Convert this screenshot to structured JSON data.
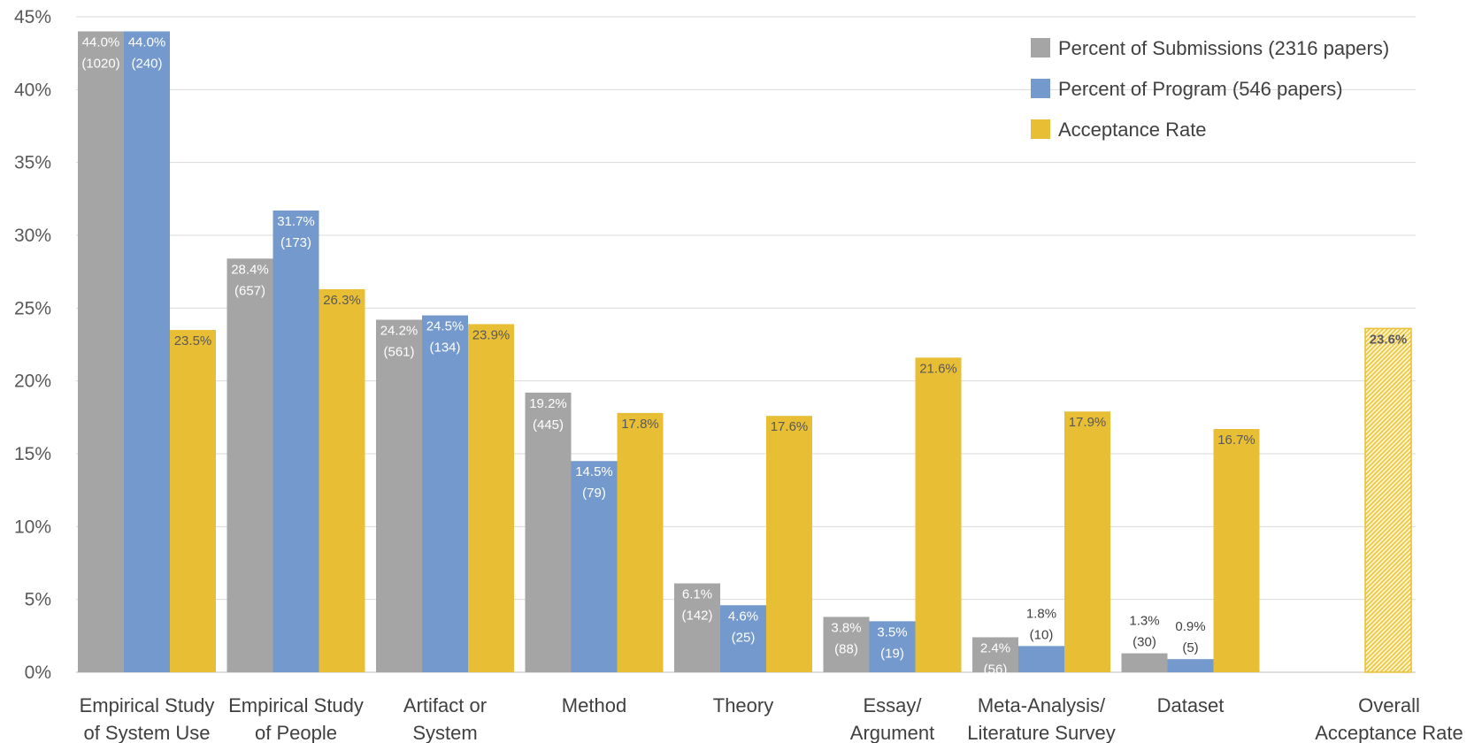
{
  "chart_data": {
    "type": "bar",
    "title": "",
    "xlabel": "",
    "ylabel": "",
    "ylim": [
      0,
      45
    ],
    "yticks": [
      "0%",
      "5%",
      "10%",
      "15%",
      "20%",
      "25%",
      "30%",
      "35%",
      "40%",
      "45%"
    ],
    "grid": true,
    "legend_position": "top-right",
    "categories": [
      [
        "Empirical Study",
        "of System Use"
      ],
      [
        "Empirical Study",
        "of People"
      ],
      [
        "Artifact or",
        "System"
      ],
      [
        "Method"
      ],
      [
        "Theory"
      ],
      [
        "Essay/",
        "Argument"
      ],
      [
        "Meta-Analysis/",
        "Literature Survey"
      ],
      [
        "Dataset"
      ],
      [
        "Overall",
        "Acceptance Rate"
      ]
    ],
    "series": [
      {
        "name": "Percent of Submissions (2316 papers)",
        "color": "#a5a5a5",
        "label_color": "#ffffff",
        "values": [
          44.0,
          28.4,
          24.2,
          19.2,
          6.1,
          3.8,
          2.4,
          1.3,
          null
        ],
        "labels": [
          [
            "44.0%",
            "(1020)"
          ],
          [
            "28.4%",
            "(657)"
          ],
          [
            "24.2%",
            "(561)"
          ],
          [
            "19.2%",
            "(445)"
          ],
          [
            "6.1%",
            "(142)"
          ],
          [
            "3.8%",
            "(88)"
          ],
          [
            "2.4%",
            "(56)"
          ],
          [
            "1.3%",
            "(30)"
          ],
          null
        ]
      },
      {
        "name": "Percent of Program (546 papers)",
        "color": "#7499cd",
        "label_color": "#ffffff",
        "values": [
          44.0,
          31.7,
          24.5,
          14.5,
          4.6,
          3.5,
          1.8,
          0.9,
          null
        ],
        "labels": [
          [
            "44.0%",
            "(240)"
          ],
          [
            "31.7%",
            "(173)"
          ],
          [
            "24.5%",
            "(134)"
          ],
          [
            "14.5%",
            "(79)"
          ],
          [
            "4.6%",
            "(25)"
          ],
          [
            "3.5%",
            "(19)"
          ],
          [
            "1.8%",
            "(10)"
          ],
          [
            "0.9%",
            "(5)"
          ],
          null
        ]
      },
      {
        "name": "Acceptance Rate",
        "color": "#e8be35",
        "label_color": "#595959",
        "values": [
          23.5,
          26.3,
          23.9,
          17.8,
          17.6,
          21.6,
          17.9,
          16.7,
          23.6
        ],
        "labels": [
          [
            "23.5%"
          ],
          [
            "26.3%"
          ],
          [
            "23.9%"
          ],
          [
            "17.8%"
          ],
          [
            "17.6%"
          ],
          [
            "21.6%"
          ],
          [
            "17.9%"
          ],
          [
            "16.7%"
          ],
          [
            "23.6%"
          ]
        ]
      }
    ],
    "overall_bar_style": "hatched"
  }
}
